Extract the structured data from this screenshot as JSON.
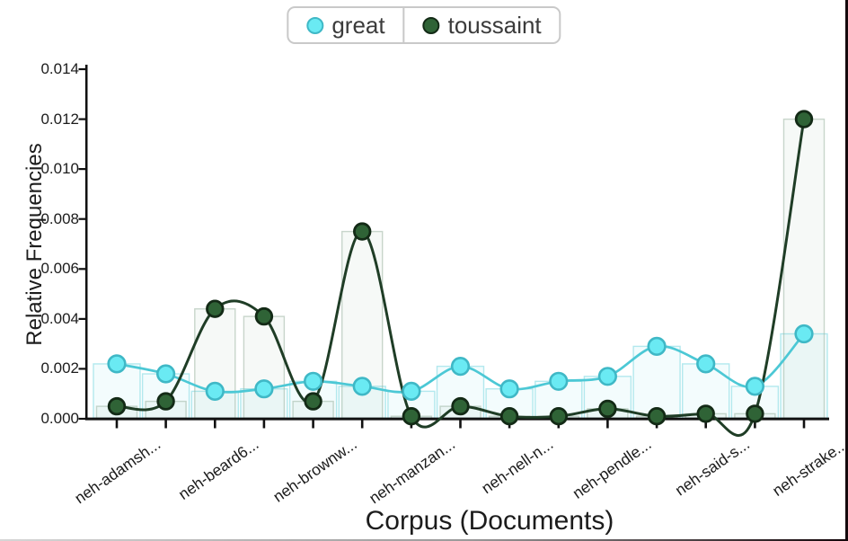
{
  "legend": {
    "items": [
      {
        "label": "great",
        "color": "#6aeaf3",
        "ring": "#3fb8c6"
      },
      {
        "label": "toussaint",
        "color": "#2f6336",
        "ring": "#132a16"
      }
    ]
  },
  "axes": {
    "y_title": "Relative Frequencies",
    "x_title": "Corpus (Documents)",
    "y_tick_labels": [
      "0.000",
      "0.002",
      "0.004",
      "0.006",
      "0.008",
      "0.010",
      "0.012",
      "0.014"
    ]
  },
  "chart_data": {
    "type": "line",
    "title": "",
    "xlabel": "Corpus (Documents)",
    "ylabel": "Relative Frequencies",
    "ylim": [
      0,
      0.014
    ],
    "y_tick_step": 0.002,
    "grid": false,
    "legend_position": "top-center",
    "x_tick_count": 15,
    "labeled_tick_indices": [
      0,
      2,
      4,
      6,
      8,
      10,
      12,
      14
    ],
    "categories": [
      "neh-adamsh...",
      "",
      "neh-beard6...",
      "",
      "neh-brownw...",
      "",
      "neh-manzan...",
      "",
      "neh-nell-n...",
      "",
      "neh-pendle...",
      "",
      "neh-said-s...",
      "",
      "neh-strake..."
    ],
    "series": [
      {
        "name": "great",
        "style": "smooth line with circle markers and faint background bars",
        "marker_fill": "#6aeaf3",
        "marker_stroke": "#3fb8c6",
        "line_color": "#4cc8d5",
        "values": [
          0.0022,
          0.0018,
          0.0011,
          0.0012,
          0.0015,
          0.0013,
          0.0011,
          0.0021,
          0.0012,
          0.0015,
          0.0017,
          0.0029,
          0.0022,
          0.0013,
          0.0034
        ]
      },
      {
        "name": "toussaint",
        "style": "smooth line with circle markers and faint background bars",
        "marker_fill": "#2f6336",
        "marker_stroke": "#132a16",
        "line_color": "#1f3d26",
        "values": [
          0.0005,
          0.0007,
          0.0044,
          0.0041,
          0.0007,
          0.0075,
          0.0001,
          0.0005,
          0.0001,
          0.0001,
          0.0004,
          0.0001,
          0.0002,
          0.0002,
          0.012
        ]
      }
    ]
  }
}
